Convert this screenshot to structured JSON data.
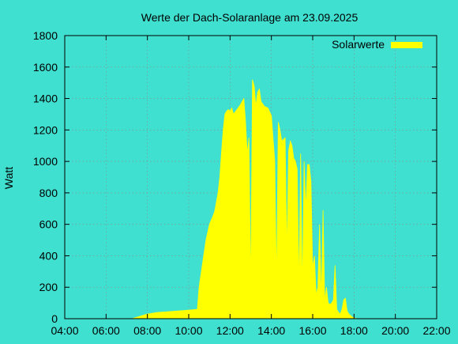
{
  "chart_data": {
    "type": "area",
    "title": "Werte der Dach-Solaranlage am 23.09.2025",
    "ylabel": "Watt",
    "xlabel": "",
    "xlim": [
      "04:00",
      "22:00"
    ],
    "ylim": [
      0,
      1800
    ],
    "x_ticks": [
      "04:00",
      "06:00",
      "08:00",
      "10:00",
      "12:00",
      "14:00",
      "16:00",
      "18:00",
      "20:00",
      "22:00"
    ],
    "y_ticks": [
      0,
      200,
      400,
      600,
      800,
      1000,
      1200,
      1400,
      1600,
      1800
    ],
    "grid": true,
    "legend_position": "top-right",
    "colors": {
      "background": "#40e0d0",
      "series": "#ffff00",
      "axes": "#000000"
    },
    "series": [
      {
        "name": "Solarwerte",
        "x": [
          "07:15",
          "07:30",
          "07:45",
          "08:00",
          "08:30",
          "09:00",
          "09:30",
          "10:00",
          "10:25",
          "10:30",
          "10:40",
          "10:50",
          "11:00",
          "11:10",
          "11:15",
          "11:25",
          "11:30",
          "11:35",
          "11:40",
          "11:45",
          "11:50",
          "11:55",
          "12:00",
          "12:05",
          "12:10",
          "12:20",
          "12:30",
          "12:40",
          "12:45",
          "12:50",
          "12:55",
          "13:00",
          "13:05",
          "13:10",
          "13:15",
          "13:20",
          "13:25",
          "13:30",
          "13:40",
          "13:50",
          "14:00",
          "14:10",
          "14:15",
          "14:20",
          "14:25",
          "14:30",
          "14:40",
          "14:45",
          "14:50",
          "14:55",
          "15:00",
          "15:05",
          "15:10",
          "15:15",
          "15:20",
          "15:25",
          "15:30",
          "15:35",
          "15:40",
          "15:45",
          "15:50",
          "15:55",
          "16:00",
          "16:05",
          "16:10",
          "16:15",
          "16:20",
          "16:25",
          "16:30",
          "16:35",
          "16:40",
          "16:45",
          "16:50",
          "16:55",
          "17:00",
          "17:05",
          "17:10",
          "17:15",
          "17:20",
          "17:25",
          "17:30",
          "17:35",
          "17:40",
          "17:45",
          "17:50",
          "17:55",
          "18:00",
          "18:10",
          "18:20",
          "18:30",
          "18:40",
          "18:50",
          "19:00"
        ],
        "values": [
          0,
          10,
          20,
          30,
          40,
          45,
          50,
          55,
          60,
          200,
          350,
          500,
          600,
          650,
          680,
          800,
          900,
          1050,
          1200,
          1300,
          1320,
          1330,
          1320,
          1340,
          1300,
          1330,
          1360,
          1400,
          1250,
          1050,
          1150,
          180,
          1520,
          1480,
          1350,
          1440,
          1460,
          1380,
          1350,
          1340,
          1290,
          1000,
          220,
          1250,
          1200,
          1130,
          1150,
          420,
          1070,
          1130,
          1100,
          1020,
          1000,
          950,
          200,
          1050,
          170,
          1000,
          700,
          980,
          980,
          870,
          320,
          400,
          150,
          200,
          600,
          120,
          690,
          110,
          200,
          100,
          90,
          100,
          120,
          340,
          60,
          40,
          30,
          60,
          120,
          130,
          50,
          30,
          20,
          10,
          5,
          0,
          0,
          0,
          0,
          0,
          0
        ]
      }
    ]
  }
}
